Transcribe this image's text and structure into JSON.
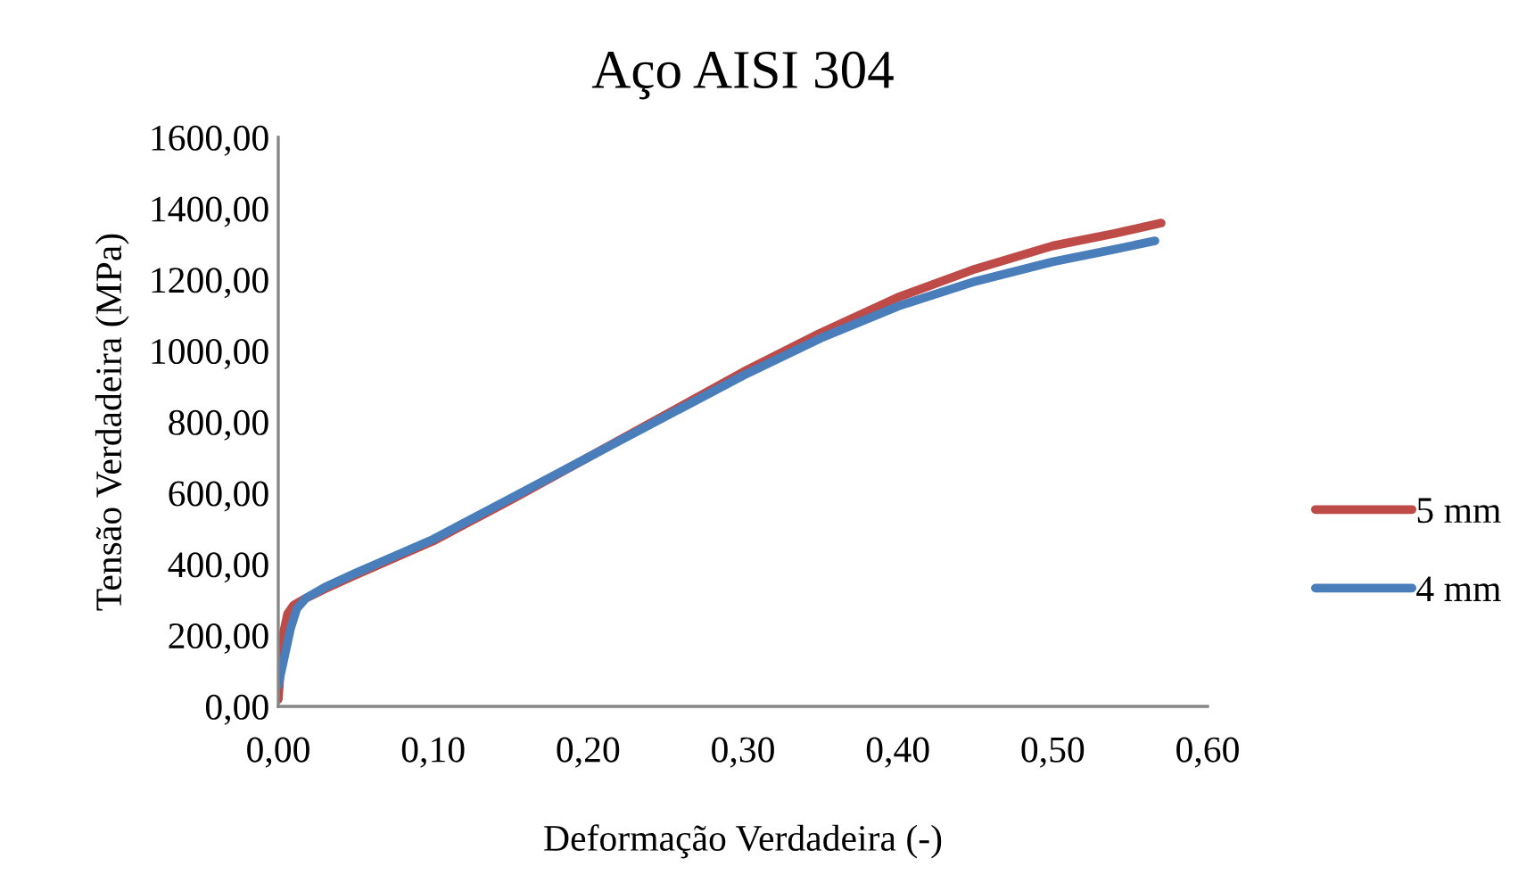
{
  "chart_data": {
    "type": "line",
    "title": "Aço AISI 304",
    "xlabel": "Deformação Verdadeira (-)",
    "ylabel": "Tensão Verdadeira (MPa)",
    "xlim": [
      0,
      0.6
    ],
    "xticks": [
      {
        "value": 0,
        "label": "0,00"
      },
      {
        "value": 0.1,
        "label": "0,10"
      },
      {
        "value": 0.2,
        "label": "0,20"
      },
      {
        "value": 0.3,
        "label": "0,30"
      },
      {
        "value": 0.4,
        "label": "0,40"
      },
      {
        "value": 0.5,
        "label": "0,50"
      },
      {
        "value": 0.6,
        "label": "0,60"
      }
    ],
    "ylim": [
      0,
      1600
    ],
    "yticks": [
      {
        "value": 0,
        "label": "0,00"
      },
      {
        "value": 200,
        "label": "200,00"
      },
      {
        "value": 400,
        "label": "400,00"
      },
      {
        "value": 600,
        "label": "600,00"
      },
      {
        "value": 800,
        "label": "800,00"
      },
      {
        "value": 1000,
        "label": "1000,00"
      },
      {
        "value": 1200,
        "label": "1200,00"
      },
      {
        "value": 1400,
        "label": "1400,00"
      },
      {
        "value": 1600,
        "label": "1600,00"
      }
    ],
    "grid": false,
    "legend": "right",
    "marker": "none",
    "line_style": "solid",
    "series": [
      {
        "name": "5 mm",
        "color": "#be4b48",
        "x": [
          0,
          0.003,
          0.006,
          0.01,
          0.016,
          0.03,
          0.05,
          0.1,
          0.15,
          0.2,
          0.25,
          0.3,
          0.35,
          0.4,
          0.45,
          0.5,
          0.54,
          0.57
        ],
        "values": [
          20,
          200,
          260,
          285,
          300,
          330,
          370,
          465,
          580,
          700,
          820,
          940,
          1050,
          1150,
          1230,
          1295,
          1330,
          1359
        ]
      },
      {
        "name": "4 mm",
        "color": "#4a7ebb",
        "x": [
          0,
          0.004,
          0.008,
          0.012,
          0.018,
          0.03,
          0.05,
          0.1,
          0.15,
          0.2,
          0.25,
          0.3,
          0.35,
          0.4,
          0.45,
          0.5,
          0.54,
          0.566
        ],
        "values": [
          60,
          140,
          220,
          275,
          305,
          335,
          375,
          470,
          585,
          700,
          815,
          930,
          1035,
          1125,
          1195,
          1250,
          1285,
          1309
        ]
      }
    ]
  }
}
